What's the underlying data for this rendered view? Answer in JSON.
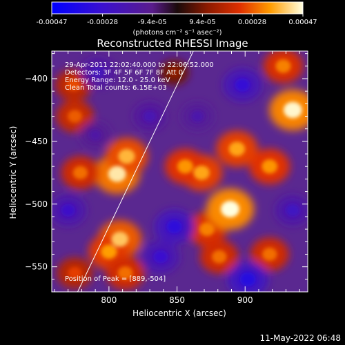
{
  "chart_data": {
    "type": "heatmap",
    "title": "Reconstructed RHESSI Image",
    "xlabel": "Heliocentric X (arcsec)",
    "ylabel": "Heliocentric Y (arcsec)",
    "xlim": [
      758,
      946
    ],
    "ylim": [
      -570,
      -378
    ],
    "x_ticks": [
      800,
      850,
      900
    ],
    "y_ticks": [
      -550,
      -500,
      -450,
      -400
    ],
    "colorbar": {
      "min": -0.00047,
      "max": 0.00047,
      "tick_values": [
        -0.00047,
        -0.00028,
        -9.4e-05,
        9.4e-05,
        0.00028,
        0.00047
      ],
      "tick_labels": [
        "-0.00047",
        "-0.00028",
        "-9.4e-05",
        "9.4e-05",
        "0.00028",
        "0.00047"
      ],
      "label": "(photons cm⁻² s⁻¹ asec⁻²)"
    },
    "annotations": [
      "29-Apr-2011 22:02:40.000 to 22:06:52.000",
      "Detectors: 3F 4F 5F 6F 7F 8F  Att 0",
      "Energy Range: 12.0 - 25.0 keV",
      "Clean     Total counts: 6.15E+03"
    ],
    "peak_text": "Position of Peak = [889,-504]",
    "limb_line": [
      [
        777,
        -570
      ],
      [
        862,
        -378
      ]
    ],
    "blobs": [
      {
        "x": 806,
        "y": -476,
        "value": 0.00044
      },
      {
        "x": 813,
        "y": -462,
        "value": 0.00038
      },
      {
        "x": 808,
        "y": -528,
        "value": 0.0004
      },
      {
        "x": 800,
        "y": -538,
        "value": 0.00035
      },
      {
        "x": 812,
        "y": -555,
        "value": 0.0003
      },
      {
        "x": 779,
        "y": -475,
        "value": 0.0003
      },
      {
        "x": 775,
        "y": -430,
        "value": 0.00028
      },
      {
        "x": 774,
        "y": -405,
        "value": 0.00026
      },
      {
        "x": 775,
        "y": -555,
        "value": 0.00025
      },
      {
        "x": 868,
        "y": -475,
        "value": 0.00036
      },
      {
        "x": 856,
        "y": -470,
        "value": 0.00034
      },
      {
        "x": 872,
        "y": -520,
        "value": 0.00032
      },
      {
        "x": 889,
        "y": -504,
        "value": 0.00047
      },
      {
        "x": 881,
        "y": -542,
        "value": 0.0003
      },
      {
        "x": 894,
        "y": -456,
        "value": 0.00036
      },
      {
        "x": 918,
        "y": -470,
        "value": 0.00034
      },
      {
        "x": 935,
        "y": -425,
        "value": 0.00046
      },
      {
        "x": 928,
        "y": -390,
        "value": 0.00032
      },
      {
        "x": 918,
        "y": -540,
        "value": 0.0003
      },
      {
        "x": 848,
        "y": -395,
        "value": 0.00012
      },
      {
        "x": 848,
        "y": -518,
        "value": -0.00032
      },
      {
        "x": 838,
        "y": -542,
        "value": -0.00028
      },
      {
        "x": 898,
        "y": -405,
        "value": -0.0003
      },
      {
        "x": 902,
        "y": -560,
        "value": -0.00034
      },
      {
        "x": 770,
        "y": -505,
        "value": -0.00026
      },
      {
        "x": 792,
        "y": -395,
        "value": -0.00022
      },
      {
        "x": 830,
        "y": -430,
        "value": -0.0002
      },
      {
        "x": 935,
        "y": -505,
        "value": -0.00024
      },
      {
        "x": 865,
        "y": -430,
        "value": -0.00018
      },
      {
        "x": 790,
        "y": -445,
        "value": -0.00016
      }
    ]
  },
  "footer": {
    "timestamp": "11-May-2022 06:48"
  }
}
